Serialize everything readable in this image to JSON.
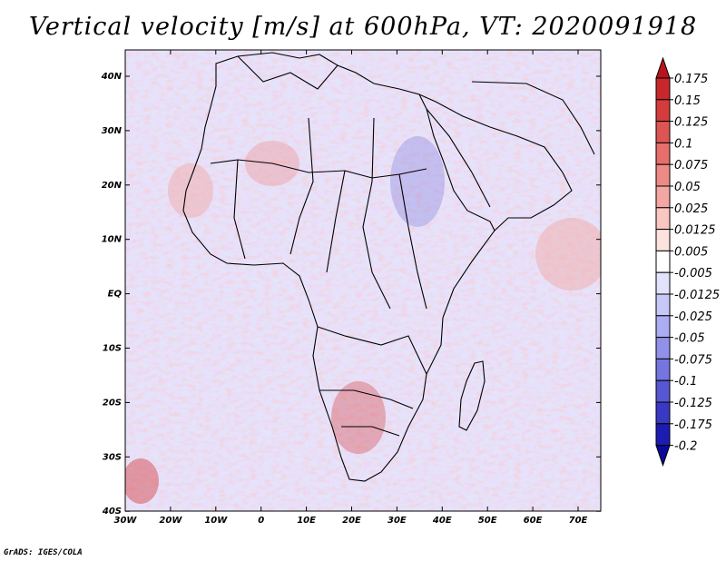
{
  "title": "Vertical velocity [m/s] at 600hPa, VT: 2020091918",
  "footer": "GrADS: IGES/COLA",
  "map": {
    "lat_labels": [
      "40N",
      "30N",
      "20N",
      "10N",
      "EQ",
      "10S",
      "20S",
      "30S",
      "40S"
    ],
    "lon_labels": [
      "30W",
      "20W",
      "10W",
      "0",
      "10E",
      "20E",
      "30E",
      "40E",
      "50E",
      "60E",
      "70E"
    ]
  },
  "colorbar": {
    "levels": [
      "0.175",
      "0.15",
      "0.125",
      "0.1",
      "0.075",
      "0.05",
      "0.025",
      "0.0125",
      "0.005",
      "-0.005",
      "-0.0125",
      "-0.025",
      "-0.05",
      "-0.075",
      "-0.1",
      "-0.125",
      "-0.175",
      "-0.2"
    ],
    "colors": [
      "#b8141e",
      "#c8272c",
      "#d43c3c",
      "#dd5553",
      "#e66e6b",
      "#ee8a86",
      "#f4a7a2",
      "#f9c6c2",
      "#fde3e0",
      "#ffffff",
      "#e2e2fd",
      "#c7c7f8",
      "#acacf2",
      "#9191ea",
      "#7575e0",
      "#5757d3",
      "#3939c4",
      "#1c1cb2",
      "#0a0a9a"
    ]
  }
}
